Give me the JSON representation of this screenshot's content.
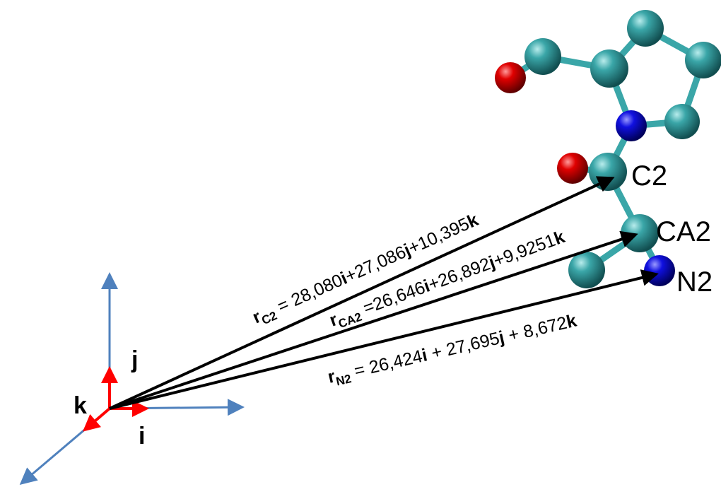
{
  "axes": {
    "i": "i",
    "j": "j",
    "k": "k"
  },
  "atoms": [
    {
      "label": "C2"
    },
    {
      "label": "CA2"
    },
    {
      "label": "N2"
    }
  ],
  "vectors": [
    {
      "parts": [
        {
          "text": "r"
        },
        {
          "text": "C2",
          "style": "sub"
        },
        {
          "text": " = 28,080"
        },
        {
          "text": "i",
          "style": "bold"
        },
        {
          "text": "+27,086"
        },
        {
          "text": "j",
          "style": "bold"
        },
        {
          "text": "+10,395"
        },
        {
          "text": "k",
          "style": "bold"
        }
      ]
    },
    {
      "parts": [
        {
          "text": "r"
        },
        {
          "text": "CA2",
          "style": "sub"
        },
        {
          "text": " =26,646"
        },
        {
          "text": "i",
          "style": "bold"
        },
        {
          "text": "+26,892"
        },
        {
          "text": "j",
          "style": "bold"
        },
        {
          "text": "+9,9251"
        },
        {
          "text": "k",
          "style": "bold"
        }
      ]
    },
    {
      "parts": [
        {
          "text": "r"
        },
        {
          "text": "N2",
          "style": "sub"
        },
        {
          "text": " = 26,424"
        },
        {
          "text": "i",
          "style": "bold"
        },
        {
          "text": " + 27,695"
        },
        {
          "text": "j",
          "style": "bold"
        },
        {
          "text": " + 8,672"
        },
        {
          "text": "k",
          "style": "bold"
        }
      ]
    }
  ]
}
